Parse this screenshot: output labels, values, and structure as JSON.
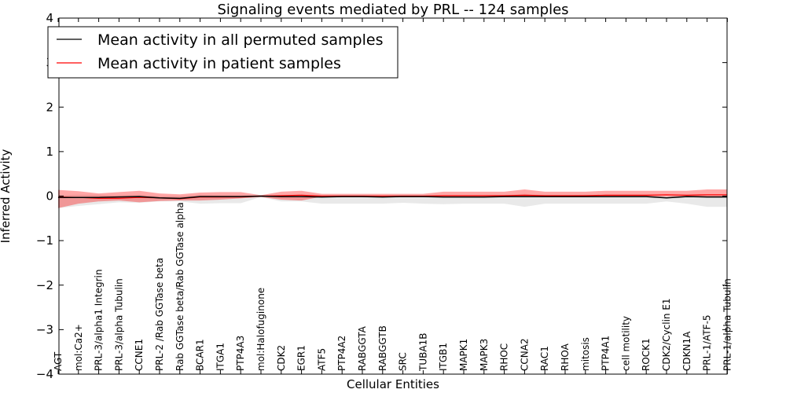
{
  "chart_data": {
    "type": "line",
    "title": "Signaling events mediated by PRL -- 124 samples",
    "xlabel": "Cellular Entities",
    "ylabel": "Inferred Activity",
    "ylim": [
      -4,
      4
    ],
    "yticks": [
      4,
      3,
      2,
      1,
      0,
      -1,
      -2,
      -3,
      -4
    ],
    "ytick_labels": [
      "4",
      "3",
      "2",
      "1",
      "0",
      "−1",
      "−2",
      "−3",
      "−4"
    ],
    "legend": {
      "placement": "top-left",
      "entries": [
        {
          "label": "Mean activity in all permuted samples",
          "color": "#000000"
        },
        {
          "label": "Mean activity in patient samples",
          "color": "#ff0000"
        }
      ]
    },
    "categories": [
      "AGT",
      "mol:Ca2+",
      "PRL-3/alpha1 Integrin",
      "PRL-3/alpha Tubulin",
      "CCNE1",
      "PRL-2 /Rab GGTase beta",
      "Rab GGTase beta/Rab GGTase alpha",
      "BCAR1",
      "ITGA1",
      "PTP4A3",
      "mol:Halofuginone",
      "CDK2",
      "EGR1",
      "ATF5",
      "PTP4A2",
      "RABGGTA",
      "RABGGTB",
      "SRC",
      "TUBA1B",
      "ITGB1",
      "MAPK1",
      "MAPK3",
      "RHOC",
      "CCNA2",
      "RAC1",
      "RHOA",
      "mitosis",
      "PTP4A1",
      "cell motility",
      "ROCK1",
      "CDK2/Cyclin E1",
      "CDKN1A",
      "PRL-1/ATF-5",
      "PRL-1/alpha Tubulin"
    ],
    "series": [
      {
        "name": "Mean activity in all permuted samples",
        "color": "#000000",
        "values": [
          -0.03,
          -0.03,
          -0.03,
          -0.02,
          -0.01,
          -0.04,
          -0.05,
          -0.01,
          -0.01,
          -0.01,
          0.0,
          -0.01,
          -0.01,
          -0.02,
          -0.01,
          -0.01,
          -0.02,
          -0.01,
          -0.01,
          -0.02,
          -0.02,
          -0.02,
          -0.01,
          -0.01,
          -0.01,
          -0.01,
          -0.01,
          -0.01,
          -0.01,
          -0.01,
          -0.04,
          -0.01,
          -0.02,
          -0.02
        ],
        "band_upper": [
          0.02,
          0.03,
          0.03,
          0.02,
          0.03,
          0.0,
          0.0,
          0.03,
          0.02,
          0.02,
          0.01,
          0.01,
          0.01,
          0.02,
          0.02,
          0.02,
          0.01,
          0.02,
          0.02,
          0.02,
          0.02,
          0.02,
          0.02,
          0.05,
          0.02,
          0.02,
          0.03,
          0.02,
          0.03,
          0.02,
          0.0,
          0.02,
          0.02,
          0.02
        ],
        "band_lower": [
          -0.27,
          -0.22,
          -0.18,
          -0.14,
          -0.15,
          -0.12,
          -0.12,
          -0.17,
          -0.16,
          -0.16,
          -0.02,
          -0.12,
          -0.12,
          -0.17,
          -0.17,
          -0.17,
          -0.17,
          -0.15,
          -0.17,
          -0.18,
          -0.17,
          -0.17,
          -0.17,
          -0.24,
          -0.17,
          -0.17,
          -0.17,
          -0.17,
          -0.17,
          -0.17,
          -0.12,
          -0.17,
          -0.24,
          -0.24
        ]
      },
      {
        "name": "Mean activity in patient samples",
        "color": "#ff0000",
        "values": [
          -0.02,
          -0.03,
          -0.05,
          -0.05,
          -0.03,
          -0.04,
          -0.06,
          -0.02,
          -0.02,
          -0.02,
          0.0,
          0.01,
          0.02,
          0.0,
          0.0,
          0.0,
          0.0,
          0.0,
          0.0,
          0.01,
          0.01,
          0.01,
          0.01,
          0.02,
          0.01,
          0.01,
          0.01,
          0.02,
          0.02,
          0.02,
          0.03,
          0.02,
          0.03,
          0.03
        ],
        "band_upper": [
          0.14,
          0.11,
          0.06,
          0.09,
          0.12,
          0.06,
          0.04,
          0.08,
          0.09,
          0.09,
          0.02,
          0.1,
          0.12,
          0.05,
          0.05,
          0.05,
          0.05,
          0.05,
          0.05,
          0.1,
          0.1,
          0.1,
          0.1,
          0.15,
          0.1,
          0.1,
          0.1,
          0.12,
          0.12,
          0.12,
          0.12,
          0.12,
          0.15,
          0.15
        ],
        "band_lower": [
          -0.27,
          -0.17,
          -0.12,
          -0.1,
          -0.14,
          -0.11,
          -0.1,
          -0.1,
          -0.08,
          -0.05,
          -0.02,
          -0.08,
          -0.1,
          -0.01,
          -0.01,
          -0.01,
          -0.01,
          -0.01,
          -0.01,
          -0.02,
          -0.02,
          -0.02,
          -0.02,
          -0.02,
          -0.02,
          -0.02,
          -0.02,
          -0.01,
          -0.01,
          -0.01,
          -0.01,
          -0.01,
          -0.01,
          -0.01
        ]
      }
    ]
  }
}
